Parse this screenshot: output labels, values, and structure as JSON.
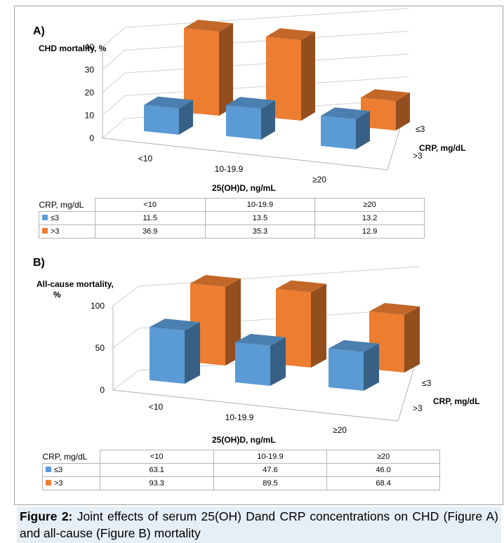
{
  "figure": {
    "caption_label": "Figure 2:",
    "caption_text": " Joint effects of serum 25(OH) Dand CRP concentrations on CHD (Figure A) and all-cause (Figure B) mortality"
  },
  "colors": {
    "low_crp": "#5b9bd5",
    "high_crp": "#ed7d31"
  },
  "chart_data": [
    {
      "type": "bar",
      "panel_label": "A)",
      "ylabel": "CHD mortality, %",
      "xlabel": "25(OH)D, ng/mL",
      "zlabel": "CRP, mg/dL",
      "categories": [
        "<10",
        "10-19.9",
        "≥20"
      ],
      "depth_categories": [
        "≤3",
        ">3"
      ],
      "yticks": [
        "0",
        "10",
        "20",
        "30",
        "40"
      ],
      "ylim": [
        0,
        40
      ],
      "grid": true,
      "series": [
        {
          "name": "≤3",
          "values": [
            11.5,
            13.5,
            13.2
          ],
          "color": "#5b9bd5"
        },
        {
          "name": ">3",
          "values": [
            36.9,
            35.3,
            12.9
          ],
          "color": "#ed7d31"
        }
      ],
      "table": {
        "row_header": "CRP, mg/dL",
        "columns": [
          "<10",
          "10-19.9",
          "≥20"
        ],
        "rows": [
          {
            "key": "≤3",
            "values": [
              "11.5",
              "13.5",
              "13.2"
            ]
          },
          {
            "key": ">3",
            "values": [
              "36.9",
              "35.3",
              "12.9"
            ]
          }
        ]
      }
    },
    {
      "type": "bar",
      "panel_label": "B)",
      "ylabel_lines": [
        "All-cause mortality,",
        "%"
      ],
      "xlabel": "25(OH)D, ng/mL",
      "zlabel": "CRP, mg/dL",
      "categories": [
        "<10",
        "10-19.9",
        "≥20"
      ],
      "depth_categories": [
        "≤3",
        ">3"
      ],
      "yticks": [
        "0",
        "50",
        "100"
      ],
      "ylim": [
        0,
        100
      ],
      "grid": true,
      "series": [
        {
          "name": "≤3",
          "values": [
            63.1,
            47.6,
            46.0
          ],
          "color": "#5b9bd5"
        },
        {
          "name": ">3",
          "values": [
            93.3,
            89.5,
            68.4
          ],
          "color": "#ed7d31"
        }
      ],
      "table": {
        "row_header": "CRP, mg/dL",
        "columns": [
          "<10",
          "10-19.9",
          "≥20"
        ],
        "rows": [
          {
            "key": "≤3",
            "values": [
              "63.1",
              "47.6",
              "46.0"
            ]
          },
          {
            "key": ">3",
            "values": [
              "93.3",
              "89.5",
              "68.4"
            ]
          }
        ]
      }
    }
  ]
}
